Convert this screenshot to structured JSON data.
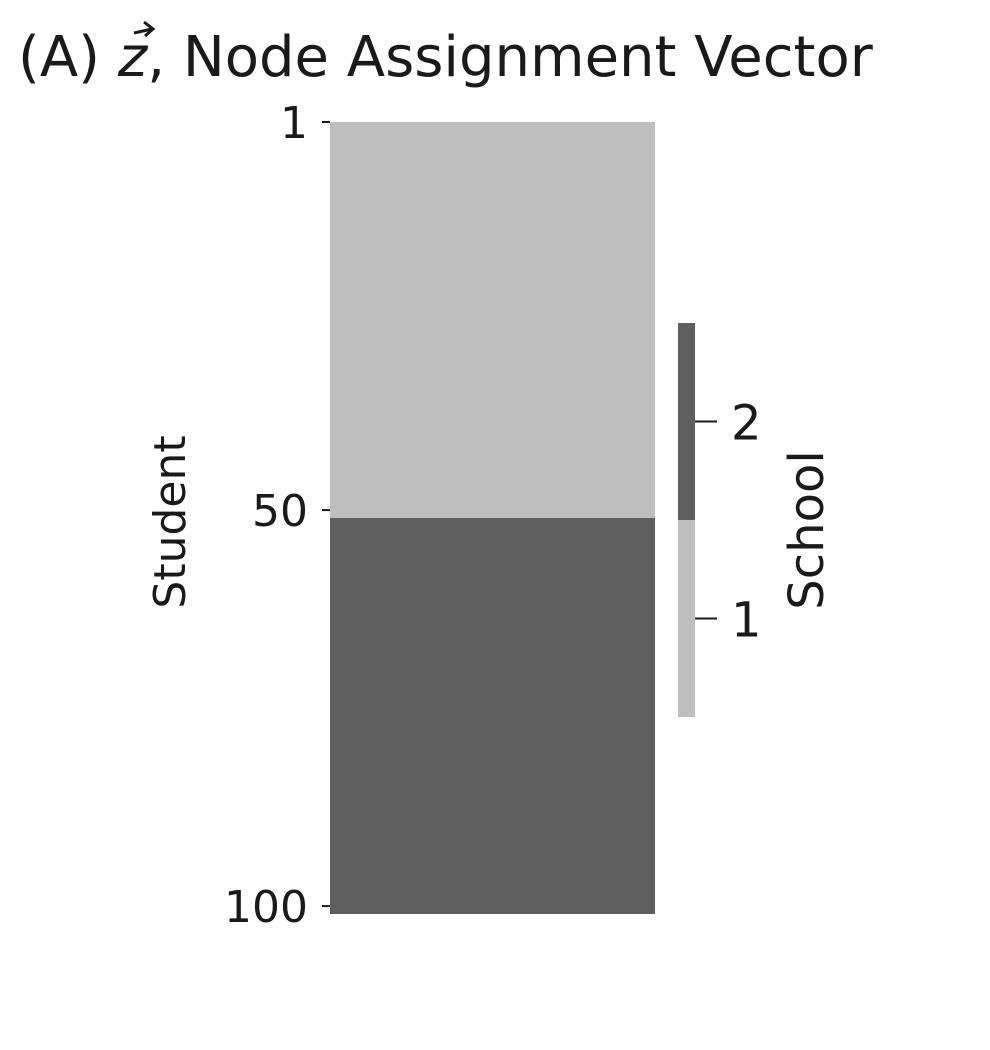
{
  "chart_data": {
    "type": "heatmap",
    "title_prefix": "(A) ",
    "title_symbol": "z",
    "title_suffix": ", Node Assignment Vector",
    "ylabel": "Student",
    "xlabel": "",
    "y_ticks": [
      "1",
      "50",
      "100"
    ],
    "y_range": [
      1,
      100
    ],
    "cells": [
      {
        "rows": [
          1,
          50
        ],
        "school": 1
      },
      {
        "rows": [
          51,
          100
        ],
        "school": 2
      }
    ],
    "colorbar": {
      "label": "School",
      "ticks": [
        "1",
        "2"
      ],
      "values": [
        1,
        2
      ]
    },
    "colors": {
      "school_1": "#bfbfbf",
      "school_2": "#5e5e5e",
      "text": "#1a1a1a"
    }
  }
}
